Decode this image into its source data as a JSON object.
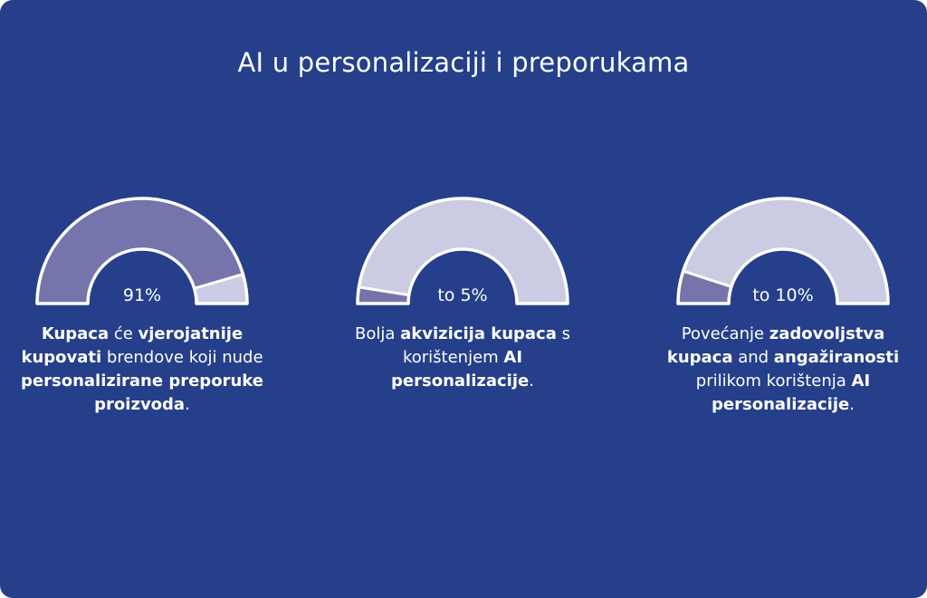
{
  "title": "AI u personalizaciji i preporukama",
  "colors": {
    "background": "#253f8a",
    "gauge_fill": "#7574ab",
    "gauge_track": "#cbcbe3",
    "gauge_outline": "#ffffff"
  },
  "chart_data": {
    "type": "gauge",
    "title": "AI u personalizaciji i preporukama",
    "gauges": [
      {
        "value_label": "91%",
        "value_percent": 91,
        "caption": [
          {
            "text": "Kupaca",
            "bold": true
          },
          {
            "text": " će ",
            "bold": false
          },
          {
            "text": "vjerojatnije kupovati",
            "bold": true
          },
          {
            "text": " brendove koji nude ",
            "bold": false
          },
          {
            "text": "personalizirane preporuke proizvoda",
            "bold": true
          },
          {
            "text": ".",
            "bold": false
          }
        ]
      },
      {
        "value_label": "to 5%",
        "value_percent": 5,
        "caption": [
          {
            "text": "Bolja ",
            "bold": false
          },
          {
            "text": "akvizicija kupaca",
            "bold": true
          },
          {
            "text": " s korištenjem ",
            "bold": false
          },
          {
            "text": "AI personalizacije",
            "bold": true
          },
          {
            "text": ".",
            "bold": false
          }
        ]
      },
      {
        "value_label": "to 10%",
        "value_percent": 10,
        "caption": [
          {
            "text": "Povećanje ",
            "bold": false
          },
          {
            "text": "zadovoljstva kupaca",
            "bold": true
          },
          {
            "text": " and ",
            "bold": false
          },
          {
            "text": "angažiranosti",
            "bold": true
          },
          {
            "text": " prilikom korištenja ",
            "bold": false
          },
          {
            "text": "AI personalizacije",
            "bold": true
          },
          {
            "text": ".",
            "bold": false
          }
        ]
      }
    ]
  }
}
